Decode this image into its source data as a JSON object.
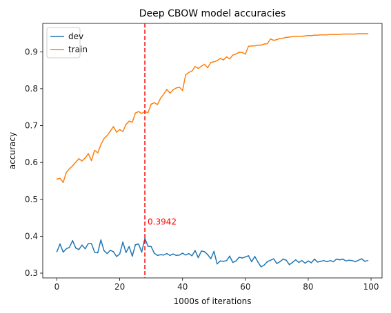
{
  "chart_data": {
    "type": "line",
    "title": "Deep CBOW model accuracies",
    "xlabel": "1000s of iterations",
    "ylabel": "accuracy",
    "xlim": [
      -4.5,
      103.5
    ],
    "ylim": [
      0.287,
      0.977
    ],
    "x_ticks": [
      0,
      20,
      40,
      60,
      80,
      100
    ],
    "y_ticks": [
      0.3,
      0.4,
      0.5,
      0.6,
      0.7,
      0.8,
      0.9
    ],
    "legend_position": "top-left",
    "marker_line": {
      "x": 28,
      "color": "#ff0000",
      "style": "dashed"
    },
    "annotation": {
      "text": "0.3942",
      "x": 28,
      "y": 0.3942,
      "color": "#ff0000"
    },
    "series": [
      {
        "name": "dev",
        "color": "#1f77b4",
        "values": [
          0.358,
          0.379,
          0.357,
          0.366,
          0.37,
          0.388,
          0.368,
          0.364,
          0.376,
          0.366,
          0.38,
          0.38,
          0.357,
          0.355,
          0.39,
          0.361,
          0.353,
          0.362,
          0.358,
          0.345,
          0.352,
          0.384,
          0.356,
          0.372,
          0.346,
          0.377,
          0.379,
          0.357,
          0.3942,
          0.373,
          0.372,
          0.354,
          0.348,
          0.35,
          0.349,
          0.353,
          0.348,
          0.352,
          0.348,
          0.349,
          0.354,
          0.349,
          0.353,
          0.347,
          0.361,
          0.342,
          0.36,
          0.358,
          0.35,
          0.339,
          0.359,
          0.325,
          0.333,
          0.332,
          0.334,
          0.346,
          0.329,
          0.333,
          0.343,
          0.341,
          0.344,
          0.347,
          0.331,
          0.345,
          0.33,
          0.317,
          0.322,
          0.331,
          0.335,
          0.339,
          0.326,
          0.331,
          0.338,
          0.335,
          0.323,
          0.329,
          0.336,
          0.329,
          0.334,
          0.327,
          0.333,
          0.328,
          0.338,
          0.33,
          0.332,
          0.334,
          0.331,
          0.334,
          0.331,
          0.338,
          0.336,
          0.338,
          0.333,
          0.335,
          0.334,
          0.331,
          0.335,
          0.339,
          0.332,
          0.334
        ]
      },
      {
        "name": "train",
        "color": "#ff7f0e",
        "values": [
          0.555,
          0.557,
          0.546,
          0.573,
          0.583,
          0.591,
          0.601,
          0.61,
          0.604,
          0.612,
          0.624,
          0.605,
          0.633,
          0.626,
          0.648,
          0.665,
          0.673,
          0.685,
          0.697,
          0.682,
          0.689,
          0.684,
          0.703,
          0.712,
          0.709,
          0.734,
          0.738,
          0.733,
          0.738,
          0.735,
          0.758,
          0.762,
          0.757,
          0.774,
          0.785,
          0.798,
          0.788,
          0.797,
          0.802,
          0.804,
          0.795,
          0.838,
          0.844,
          0.848,
          0.86,
          0.855,
          0.861,
          0.866,
          0.857,
          0.871,
          0.873,
          0.876,
          0.882,
          0.878,
          0.886,
          0.881,
          0.891,
          0.894,
          0.899,
          0.898,
          0.894,
          0.915,
          0.916,
          0.916,
          0.918,
          0.918,
          0.921,
          0.922,
          0.935,
          0.931,
          0.933,
          0.936,
          0.937,
          0.939,
          0.94,
          0.941,
          0.942,
          0.942,
          0.942,
          0.943,
          0.944,
          0.944,
          0.945,
          0.945,
          0.946,
          0.946,
          0.946,
          0.947,
          0.947,
          0.947,
          0.947,
          0.948,
          0.948,
          0.948,
          0.948,
          0.948,
          0.949,
          0.949,
          0.949,
          0.949
        ]
      }
    ]
  }
}
